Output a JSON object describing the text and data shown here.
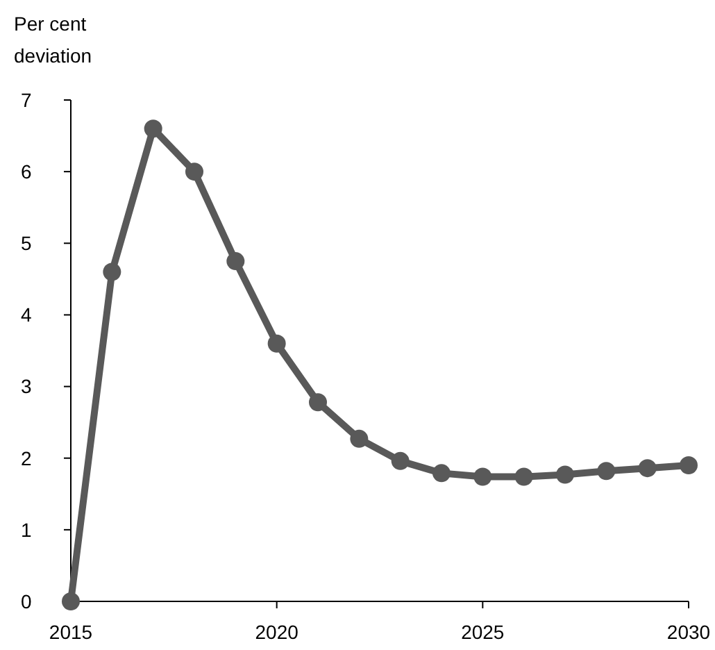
{
  "chart_data": {
    "type": "line",
    "ylabel": "Per cent\ndeviation",
    "x": [
      2015,
      2016,
      2017,
      2018,
      2019,
      2020,
      2021,
      2022,
      2023,
      2024,
      2025,
      2026,
      2027,
      2028,
      2029,
      2030
    ],
    "series": [
      {
        "color": "#595959",
        "values": [
          0,
          4.6,
          6.6,
          6.0,
          4.75,
          3.6,
          2.78,
          2.27,
          1.96,
          1.79,
          1.74,
          1.74,
          1.77,
          1.82,
          1.86,
          1.9
        ]
      }
    ],
    "xlim": [
      2015,
      2030
    ],
    "xticks": [
      2015,
      2020,
      2025,
      2030
    ],
    "ylim": [
      0,
      7
    ],
    "yticks": [
      0,
      1,
      2,
      3,
      4,
      5,
      6,
      7
    ],
    "marker": "circle"
  }
}
